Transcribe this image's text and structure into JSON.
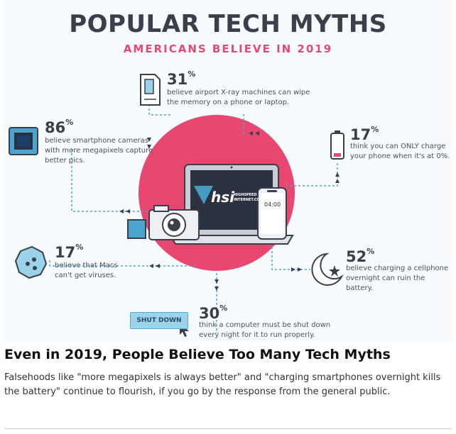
{
  "infographic": {
    "title": "POPULAR TECH MYTHS",
    "subtitle": "AMERICANS BELIEVE IN 2019",
    "brand": "hsi",
    "brand_small_1": "HIGHSPEED",
    "brand_small_2": "INTERNET.COM",
    "phone_time": "04:00",
    "shut_down_label": "SHUT DOWN",
    "accent_color": "#e8476f",
    "dark_color": "#3a3f4b",
    "myths": [
      {
        "percent": "31",
        "line1": "believe airport X-ray machines can wipe",
        "line2": "the memory on a phone or laptop.",
        "icon": "sd-card-icon"
      },
      {
        "percent": "86",
        "line1": "believe smartphone cameras",
        "line2": "with more megapixels capture",
        "line3": "better pics.",
        "icon": "camera-sensor-icon"
      },
      {
        "percent": "17",
        "line1": "think you can ONLY charge",
        "line2": "your phone when it's at 0%.",
        "icon": "battery-icon"
      },
      {
        "percent": "17",
        "line1": "believe that Macs",
        "line2": "can't get viruses.",
        "icon": "virus-icon"
      },
      {
        "percent": "52",
        "line1": "believe charging a cellphone",
        "line2": "overnight can ruin the battery.",
        "icon": "moon-icon"
      },
      {
        "percent": "30",
        "line1": "think a computer must be shut down",
        "line2": "every night for it to run properly.",
        "icon": "cursor-icon"
      }
    ]
  },
  "article": {
    "headline": "Even in 2019, People Believe Too Many Tech Myths",
    "blurb": "Falsehoods like \"more megapixels is always better\" and \"charging smartphones overnight kills the battery\" continue to flourish, if you go by the response from the general public."
  }
}
